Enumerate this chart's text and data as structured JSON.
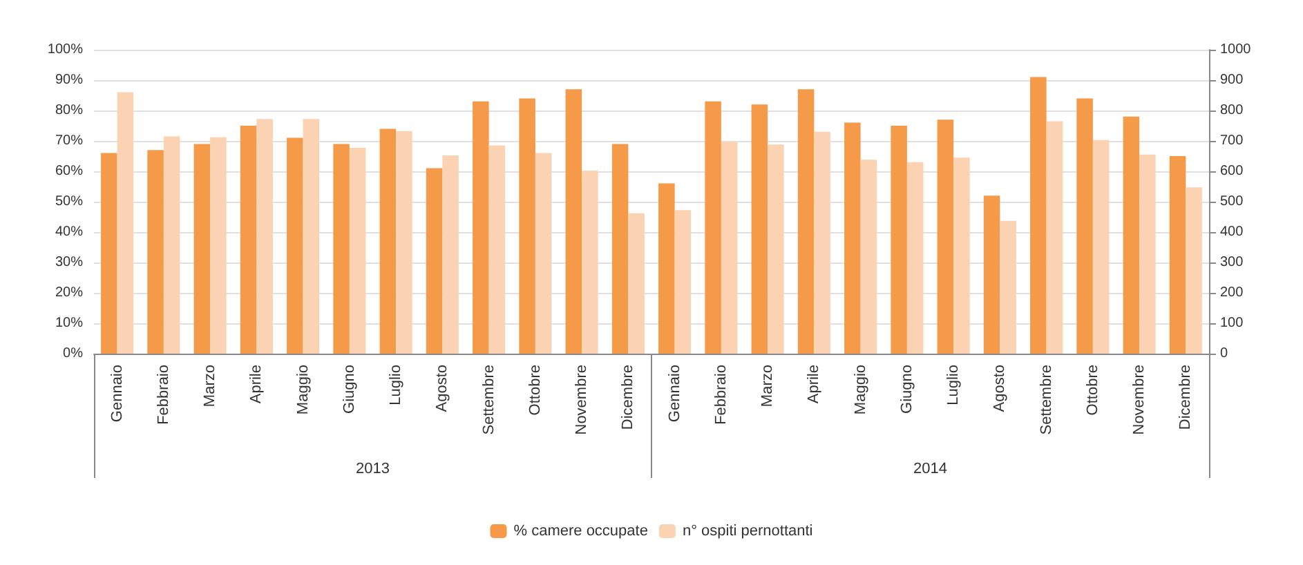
{
  "chart_data": {
    "type": "bar",
    "categories": [
      "Gennaio",
      "Febbraio",
      "Marzo",
      "Aprile",
      "Maggio",
      "Giugno",
      "Luglio",
      "Agosto",
      "Settembre",
      "Ottobre",
      "Novembre",
      "Dicembre",
      "Gennaio",
      "Febbraio",
      "Marzo",
      "Aprile",
      "Maggio",
      "Giugno",
      "Luglio",
      "Agosto",
      "Settembre",
      "Ottobre",
      "Novembre",
      "Dicembre"
    ],
    "series": [
      {
        "name": "% camere occupate",
        "color": "#f59a48",
        "values": [
          66,
          67,
          69,
          75,
          71,
          69,
          74,
          61,
          83,
          84,
          87,
          69,
          56,
          83,
          82,
          87,
          76,
          75,
          77,
          52,
          91,
          84,
          78,
          65
        ]
      },
      {
        "name": "n° ospiti pernottanti",
        "color": "#fcd3b2",
        "axis": "y2",
        "values": [
          860,
          715,
          712,
          772,
          772,
          677,
          732,
          652,
          685,
          660,
          602,
          462,
          472,
          697,
          688,
          730,
          638,
          630,
          645,
          437,
          765,
          703,
          655,
          547
        ]
      }
    ],
    "ylim": [
      0,
      100
    ],
    "yticks": [
      {
        "value": 0,
        "label": "0%"
      },
      {
        "value": 10,
        "label": "10%"
      },
      {
        "value": 20,
        "label": "20%"
      },
      {
        "value": 30,
        "label": "30%"
      },
      {
        "value": 40,
        "label": "40%"
      },
      {
        "value": 50,
        "label": "50%"
      },
      {
        "value": 60,
        "label": "60%"
      },
      {
        "value": 70,
        "label": "70%"
      },
      {
        "value": 80,
        "label": "80%"
      },
      {
        "value": 90,
        "label": "90%"
      },
      {
        "value": 100,
        "label": "100%"
      }
    ],
    "y2lim": [
      0,
      1000
    ],
    "y2ticks": [
      0,
      100,
      200,
      300,
      400,
      500,
      600,
      700,
      800,
      900,
      1000
    ],
    "annotations": [
      "2013",
      "2014"
    ],
    "grid": "y",
    "legend": "bottom"
  }
}
